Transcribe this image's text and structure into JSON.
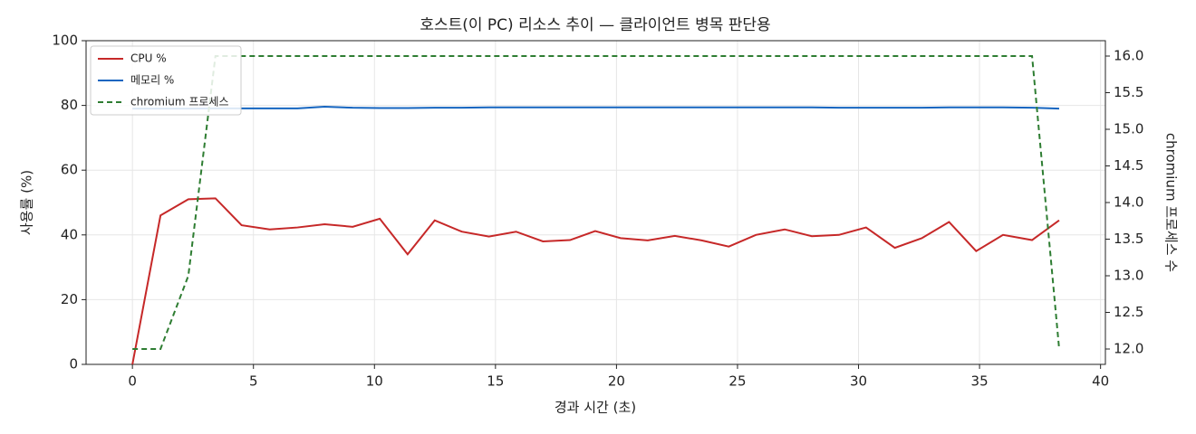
{
  "chart_data": {
    "type": "line",
    "title": "호스트(이 PC) 리소스 추이 — 클라이언트 병목 판단용",
    "x_label": "경과 시간 (초)",
    "y_label": "사용률 (%)",
    "y2_label": "chromium 프로세스 수",
    "x": [
      0,
      1.16,
      2.31,
      3.43,
      4.51,
      5.67,
      6.82,
      7.94,
      9.1,
      10.22,
      11.37,
      12.49,
      13.61,
      14.73,
      15.85,
      16.96,
      18.08,
      19.12,
      20.17,
      21.29,
      22.41,
      23.52,
      24.64,
      25.76,
      26.95,
      28.07,
      29.19,
      30.31,
      31.5,
      32.62,
      33.74,
      34.86,
      35.97,
      37.17,
      38.29
    ],
    "series": [
      {
        "name": "CPU %",
        "color": "#c62828",
        "dash": false,
        "values": [
          0,
          46,
          51,
          51.3,
          43,
          41.7,
          42.3,
          43.3,
          42.5,
          45,
          34,
          44.5,
          41,
          39.5,
          41,
          38,
          38.4,
          41.2,
          39,
          38.3,
          39.7,
          38.3,
          36.4,
          40,
          41.7,
          39.6,
          40,
          42.3,
          36,
          39,
          44,
          35,
          40,
          38.4,
          44.5
        ]
      },
      {
        "name": "메모리 %",
        "color": "#1565c0",
        "dash": false,
        "values": [
          79,
          79,
          79,
          79.1,
          79.1,
          79.1,
          79.1,
          79.6,
          79.3,
          79.2,
          79.2,
          79.3,
          79.3,
          79.4,
          79.4,
          79.4,
          79.4,
          79.4,
          79.4,
          79.4,
          79.4,
          79.4,
          79.4,
          79.4,
          79.4,
          79.4,
          79.3,
          79.3,
          79.3,
          79.3,
          79.4,
          79.4,
          79.4,
          79.3,
          79
        ]
      },
      {
        "name": "chromium 프로세스",
        "color": "#2e7d32",
        "dash": true,
        "axis": "y2",
        "values": [
          12,
          12,
          13,
          16,
          16,
          16,
          16,
          16,
          16,
          16,
          16,
          16,
          16,
          16,
          16,
          16,
          16,
          16,
          16,
          16,
          16,
          16,
          16,
          16,
          16,
          16,
          16,
          16,
          16,
          16,
          16,
          16,
          16,
          16,
          12
        ]
      }
    ],
    "xlim": [
      -1.915,
      40.2
    ],
    "xticks": [
      0,
      5,
      10,
      15,
      20,
      25,
      30,
      35,
      40
    ],
    "ylim": [
      0,
      100
    ],
    "yticks": [
      0,
      20,
      40,
      60,
      80,
      100
    ],
    "y2lim": [
      11.79,
      16.21
    ],
    "y2ticks": [
      {
        "value": 12,
        "label": "12.0"
      },
      12.5,
      {
        "value": 13,
        "label": "13.0"
      },
      13.5,
      {
        "value": 14,
        "label": "14.0"
      },
      14.5,
      {
        "value": 15,
        "label": "15.0"
      },
      15.5,
      {
        "value": 16,
        "label": "16.0"
      }
    ],
    "grid": true,
    "legend": "upper-left"
  }
}
